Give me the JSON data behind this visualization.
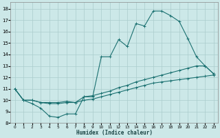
{
  "xlabel": "Humidex (Indice chaleur)",
  "bg_color": "#cce8e8",
  "grid_color": "#aacccc",
  "line_color": "#1a7070",
  "xlim": [
    -0.5,
    23.5
  ],
  "ylim": [
    8.0,
    18.6
  ],
  "xticks": [
    0,
    1,
    2,
    3,
    4,
    5,
    6,
    7,
    8,
    9,
    10,
    11,
    12,
    13,
    14,
    15,
    16,
    17,
    18,
    19,
    20,
    21,
    22,
    23
  ],
  "yticks": [
    8,
    9,
    10,
    11,
    12,
    13,
    14,
    15,
    16,
    17,
    18
  ],
  "series1_x": [
    0,
    1,
    2,
    3,
    4,
    5,
    6,
    7,
    8,
    9,
    10,
    11,
    12,
    13,
    14,
    15,
    16,
    17,
    18,
    19,
    20,
    21,
    22,
    23
  ],
  "series1_y": [
    11.0,
    10.0,
    9.7,
    9.3,
    8.6,
    8.5,
    8.8,
    8.8,
    10.3,
    10.3,
    13.8,
    13.8,
    15.3,
    14.7,
    16.7,
    16.5,
    17.8,
    17.8,
    17.4,
    16.9,
    15.4,
    13.8,
    13.0,
    12.3
  ],
  "series2_x": [
    0,
    1,
    2,
    3,
    4,
    5,
    6,
    7,
    8,
    9,
    10,
    11,
    12,
    13,
    14,
    15,
    16,
    17,
    18,
    19,
    20,
    21,
    22,
    23
  ],
  "series2_y": [
    11.0,
    10.0,
    10.0,
    9.8,
    9.7,
    9.7,
    9.8,
    9.8,
    10.3,
    10.4,
    10.6,
    10.8,
    11.1,
    11.3,
    11.6,
    11.8,
    12.0,
    12.2,
    12.4,
    12.6,
    12.8,
    13.0,
    13.0,
    12.3
  ],
  "series3_x": [
    0,
    1,
    2,
    3,
    4,
    5,
    6,
    7,
    8,
    9,
    10,
    11,
    12,
    13,
    14,
    15,
    16,
    17,
    18,
    19,
    20,
    21,
    22,
    23
  ],
  "series3_y": [
    11.0,
    10.0,
    10.0,
    9.8,
    9.8,
    9.8,
    9.9,
    9.8,
    10.0,
    10.1,
    10.3,
    10.5,
    10.7,
    10.9,
    11.1,
    11.3,
    11.5,
    11.6,
    11.7,
    11.8,
    11.9,
    12.0,
    12.1,
    12.2
  ],
  "figsize": [
    3.2,
    2.0
  ],
  "dpi": 100
}
